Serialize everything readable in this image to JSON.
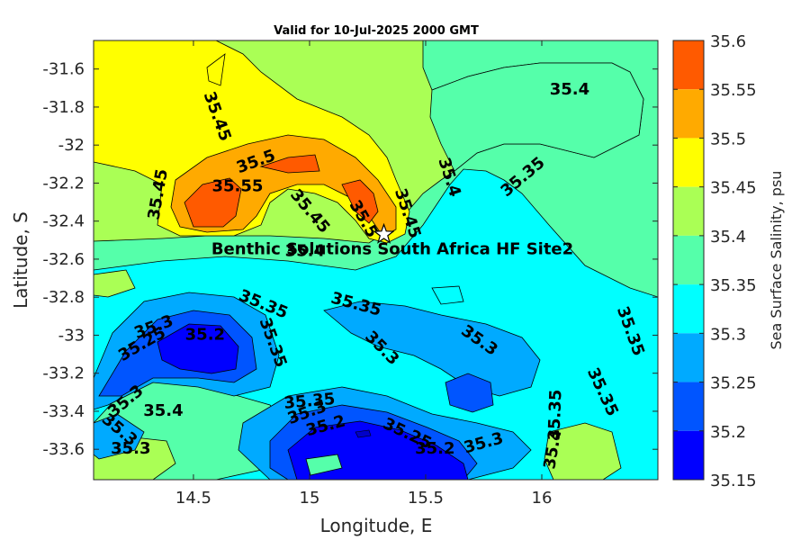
{
  "chart_data": {
    "type": "contour",
    "title": "Valid for 10-Jul-2025 2000 GMT",
    "xlabel": "Longitude, E",
    "ylabel": "Latitude, S",
    "xlim": [
      14.07,
      16.5
    ],
    "ylim": [
      -33.76,
      -31.45
    ],
    "xticks": [
      "14.5",
      "15",
      "15.5",
      "16"
    ],
    "xtick_values": [
      14.5,
      15,
      15.5,
      16
    ],
    "yticks": [
      "-31.6",
      "-31.8",
      "-32",
      "-32.2",
      "-32.4",
      "-32.6",
      "-32.8",
      "-33",
      "-33.2",
      "-33.4",
      "-33.6"
    ],
    "ytick_values": [
      -31.6,
      -31.8,
      -32,
      -32.2,
      -32.4,
      -32.6,
      -32.8,
      -33,
      -33.2,
      -33.4,
      -33.6
    ],
    "colorbar": {
      "label": "Sea Surface Salinity, psu",
      "levels": [
        "35.6",
        "35.55",
        "35.5",
        "35.45",
        "35.4",
        "35.35",
        "35.3",
        "35.25",
        "35.2",
        "35.15"
      ],
      "colors": [
        "#ff5a00",
        "#ffaa00",
        "#ffff00",
        "#aaff55",
        "#55ffaa",
        "#00ffff",
        "#00aaff",
        "#0055ff",
        "#0000ff"
      ]
    },
    "site": {
      "label": "Benthic Solutions South Africa HF Site2",
      "lon": 15.32,
      "lat": -32.47
    },
    "contour_labels": [
      {
        "text": "35.45",
        "lon": 14.6,
        "lat": -31.85,
        "rot": 70
      },
      {
        "text": "35.4",
        "lon": 16.12,
        "lat": -31.71,
        "rot": 0
      },
      {
        "text": "35.45",
        "lon": 14.35,
        "lat": -32.26,
        "rot": -80
      },
      {
        "text": "35.5",
        "lon": 14.77,
        "lat": -32.09,
        "rot": -20
      },
      {
        "text": "35.55",
        "lon": 14.69,
        "lat": -32.22,
        "rot": 0
      },
      {
        "text": "35.45",
        "lon": 15.0,
        "lat": -32.35,
        "rot": 50
      },
      {
        "text": "35.5",
        "lon": 15.23,
        "lat": -32.39,
        "rot": 60
      },
      {
        "text": "35.45",
        "lon": 15.42,
        "lat": -32.36,
        "rot": 72
      },
      {
        "text": "35.4",
        "lon": 15.6,
        "lat": -32.17,
        "rot": 72
      },
      {
        "text": "35.35",
        "lon": 15.92,
        "lat": -32.17,
        "rot": -40
      },
      {
        "text": "35.4",
        "lon": 14.98,
        "lat": -32.56,
        "rot": 0
      },
      {
        "text": "35.35",
        "lon": 14.8,
        "lat": -32.84,
        "rot": 22
      },
      {
        "text": "35.35",
        "lon": 15.2,
        "lat": -32.84,
        "rot": 15
      },
      {
        "text": "35.35",
        "lon": 16.38,
        "lat": -32.98,
        "rot": 70
      },
      {
        "text": "35.3",
        "lon": 14.33,
        "lat": -32.96,
        "rot": -20
      },
      {
        "text": "35.25",
        "lon": 14.28,
        "lat": -33.05,
        "rot": -30
      },
      {
        "text": "35.2",
        "lon": 14.55,
        "lat": -33.0,
        "rot": 0
      },
      {
        "text": "35.35",
        "lon": 14.84,
        "lat": -33.04,
        "rot": 70
      },
      {
        "text": "35.3",
        "lon": 15.31,
        "lat": -33.07,
        "rot": 45
      },
      {
        "text": "35.3",
        "lon": 15.73,
        "lat": -33.03,
        "rot": 35
      },
      {
        "text": "35.35",
        "lon": 16.26,
        "lat": -33.3,
        "rot": 65
      },
      {
        "text": "35.3",
        "lon": 14.21,
        "lat": -33.35,
        "rot": -40
      },
      {
        "text": "35.4",
        "lon": 14.37,
        "lat": -33.4,
        "rot": 0
      },
      {
        "text": "35.35",
        "lon": 15.0,
        "lat": -33.35,
        "rot": -5
      },
      {
        "text": "35.3",
        "lon": 14.99,
        "lat": -33.41,
        "rot": -20
      },
      {
        "text": "35.2",
        "lon": 15.07,
        "lat": -33.48,
        "rot": -15
      },
      {
        "text": "35.25",
        "lon": 15.42,
        "lat": -33.52,
        "rot": 25
      },
      {
        "text": "35.2",
        "lon": 15.54,
        "lat": -33.6,
        "rot": 0
      },
      {
        "text": "35.3",
        "lon": 15.75,
        "lat": -33.57,
        "rot": -15
      },
      {
        "text": "35.35",
        "lon": 16.06,
        "lat": -33.42,
        "rot": -88
      },
      {
        "text": "35.4",
        "lon": 16.05,
        "lat": -33.6,
        "rot": -80
      },
      {
        "text": "35.3",
        "lon": 14.18,
        "lat": -33.5,
        "rot": 40
      },
      {
        "text": "35.3",
        "lon": 14.23,
        "lat": -33.6,
        "rot": 0
      }
    ]
  }
}
